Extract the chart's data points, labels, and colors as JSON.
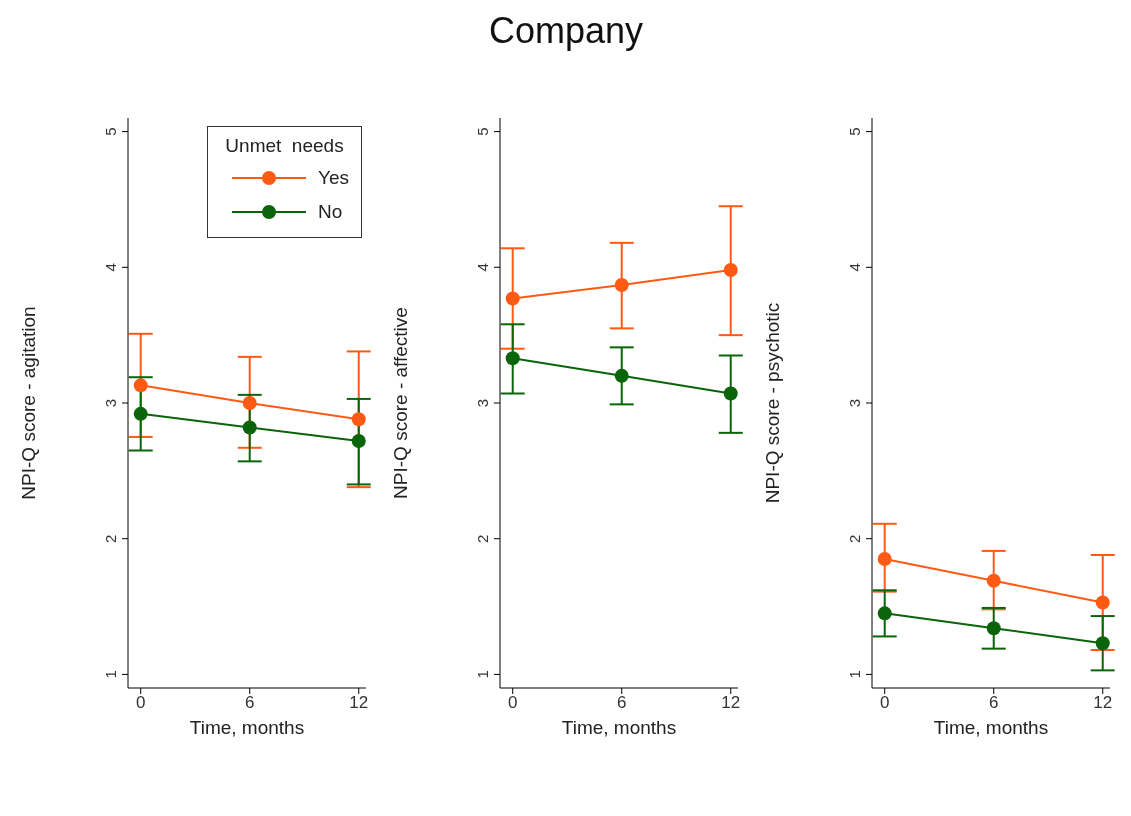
{
  "chart_data": [
    {
      "type": "line",
      "xlabel": "Time, months",
      "ylabel": "NPI-Q score - agitation",
      "x": [
        0,
        6,
        12
      ],
      "xlim": [
        -0.7,
        12.4
      ],
      "xticks": [
        0,
        6,
        12
      ],
      "ylim": [
        0.9,
        5.1
      ],
      "yticks": [
        1,
        2,
        3,
        4,
        5
      ],
      "grid": false,
      "marker": "circle",
      "legend": "top right",
      "legend_title": "Unmet  needs",
      "series": [
        {
          "name": "Yes",
          "color": "#ff5a14",
          "values": [
            3.13,
            3.0,
            2.88
          ],
          "errors": [
            [
              2.75,
              3.51
            ],
            [
              2.67,
              3.34
            ],
            [
              2.38,
              3.38
            ]
          ]
        },
        {
          "name": "No",
          "color": "#0a640a",
          "values": [
            2.92,
            2.82,
            2.72
          ],
          "errors": [
            [
              2.65,
              3.19
            ],
            [
              2.57,
              3.06
            ],
            [
              2.4,
              3.03
            ]
          ]
        }
      ]
    },
    {
      "type": "line",
      "title": "Company",
      "xlabel": "Time, months",
      "ylabel": "NPI-Q score - affective",
      "x": [
        0,
        6,
        12
      ],
      "xlim": [
        -0.7,
        12.4
      ],
      "xticks": [
        0,
        6,
        12
      ],
      "ylim": [
        0.9,
        5.1
      ],
      "yticks": [
        1,
        2,
        3,
        4,
        5
      ],
      "grid": false,
      "marker": "circle",
      "series": [
        {
          "color": "#ff5a14",
          "values": [
            3.77,
            3.87,
            3.98
          ],
          "errors": [
            [
              3.4,
              4.14
            ],
            [
              3.55,
              4.18
            ],
            [
              3.5,
              4.45
            ]
          ]
        },
        {
          "color": "#0a640a",
          "values": [
            3.33,
            3.2,
            3.07
          ],
          "errors": [
            [
              3.07,
              3.58
            ],
            [
              2.99,
              3.41
            ],
            [
              2.78,
              3.35
            ]
          ]
        }
      ]
    },
    {
      "type": "line",
      "xlabel": "Time, months",
      "ylabel": "NPI-Q score - psychotic",
      "x": [
        0,
        6,
        12
      ],
      "xlim": [
        -0.7,
        12.4
      ],
      "xticks": [
        0,
        6,
        12
      ],
      "ylim": [
        0.9,
        5.1
      ],
      "yticks": [
        1,
        2,
        3,
        4,
        5
      ],
      "grid": false,
      "marker": "circle",
      "series": [
        {
          "color": "#ff5a14",
          "values": [
            1.85,
            1.69,
            1.53
          ],
          "errors": [
            [
              1.61,
              2.11
            ],
            [
              1.48,
              1.91
            ],
            [
              1.18,
              1.88
            ]
          ]
        },
        {
          "color": "#0a640a",
          "values": [
            1.45,
            1.34,
            1.23
          ],
          "errors": [
            [
              1.28,
              1.62
            ],
            [
              1.19,
              1.49
            ],
            [
              1.03,
              1.43
            ]
          ]
        }
      ]
    }
  ]
}
